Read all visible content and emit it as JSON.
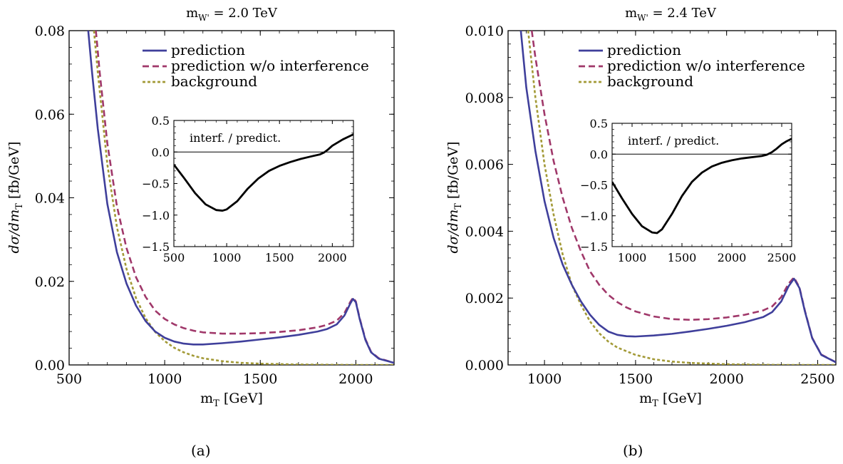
{
  "chart_data": [
    {
      "id": "a",
      "type": "line",
      "caption": "(a)",
      "title_main": "m",
      "title_sub": "W'",
      "title_rest": " = 2.0 TeV",
      "xlabel_main": "m",
      "xlabel_sub": "T",
      "xlabel_rest": " [GeV]",
      "ylabel": "dσ/dm_T [fb/GeV]",
      "xlim": [
        500,
        2200
      ],
      "ylim": [
        0,
        0.08
      ],
      "xticks": [
        500,
        1000,
        1500,
        2000
      ],
      "xtick_labels": [
        "500",
        "1000",
        "1500",
        "2000"
      ],
      "yticks": [
        0,
        0.02,
        0.04,
        0.06,
        0.08
      ],
      "ytick_labels": [
        "0.00",
        "0.02",
        "0.04",
        "0.06",
        "0.08"
      ],
      "legend_position": "top-right",
      "series": [
        {
          "name": "prediction",
          "color": "#3f3f9b",
          "dash": "solid",
          "points": [
            [
              600,
              0.08
            ],
            [
              620,
              0.07
            ],
            [
              650,
              0.0565
            ],
            [
              700,
              0.0385
            ],
            [
              750,
              0.027
            ],
            [
              800,
              0.0195
            ],
            [
              850,
              0.0142
            ],
            [
              900,
              0.0105
            ],
            [
              950,
              0.008
            ],
            [
              1000,
              0.0065
            ],
            [
              1050,
              0.0056
            ],
            [
              1100,
              0.0051
            ],
            [
              1150,
              0.0049
            ],
            [
              1200,
              0.0049
            ],
            [
              1300,
              0.0052
            ],
            [
              1400,
              0.0056
            ],
            [
              1500,
              0.0061
            ],
            [
              1600,
              0.0066
            ],
            [
              1700,
              0.0072
            ],
            [
              1800,
              0.008
            ],
            [
              1850,
              0.0086
            ],
            [
              1900,
              0.0097
            ],
            [
              1940,
              0.0118
            ],
            [
              1970,
              0.0146
            ],
            [
              1985,
              0.0158
            ],
            [
              2000,
              0.015
            ],
            [
              2020,
              0.011
            ],
            [
              2050,
              0.006
            ],
            [
              2080,
              0.003
            ],
            [
              2120,
              0.0015
            ],
            [
              2200,
              0.0005
            ]
          ]
        },
        {
          "name": "prediction w/o interference",
          "color": "#a0386a",
          "dash": "dashed",
          "points": [
            [
              640,
              0.08
            ],
            [
              660,
              0.07
            ],
            [
              700,
              0.053
            ],
            [
              750,
              0.038
            ],
            [
              800,
              0.028
            ],
            [
              850,
              0.021
            ],
            [
              900,
              0.0163
            ],
            [
              950,
              0.013
            ],
            [
              1000,
              0.011
            ],
            [
              1050,
              0.0097
            ],
            [
              1100,
              0.0088
            ],
            [
              1150,
              0.0082
            ],
            [
              1200,
              0.0078
            ],
            [
              1300,
              0.0075
            ],
            [
              1400,
              0.0075
            ],
            [
              1500,
              0.0076
            ],
            [
              1600,
              0.0079
            ],
            [
              1700,
              0.0083
            ],
            [
              1800,
              0.009
            ],
            [
              1850,
              0.0096
            ],
            [
              1900,
              0.0106
            ],
            [
              1940,
              0.0124
            ],
            [
              1970,
              0.015
            ],
            [
              1985,
              0.0161
            ],
            [
              2000,
              0.0152
            ],
            [
              2020,
              0.0112
            ],
            [
              2050,
              0.0062
            ],
            [
              2080,
              0.0031
            ],
            [
              2120,
              0.0016
            ],
            [
              2200,
              0.0005
            ]
          ]
        },
        {
          "name": "background",
          "color": "#a39a37",
          "dash": "dotted",
          "points": [
            [
              630,
              0.08
            ],
            [
              650,
              0.07
            ],
            [
              700,
              0.048
            ],
            [
              750,
              0.033
            ],
            [
              800,
              0.023
            ],
            [
              850,
              0.016
            ],
            [
              900,
              0.0112
            ],
            [
              950,
              0.0079
            ],
            [
              1000,
              0.0057
            ],
            [
              1050,
              0.0041
            ],
            [
              1100,
              0.003
            ],
            [
              1150,
              0.0022
            ],
            [
              1200,
              0.0016
            ],
            [
              1300,
              0.0009
            ],
            [
              1400,
              0.0005
            ],
            [
              1500,
              0.0003
            ],
            [
              1700,
              0.0001
            ],
            [
              2000,
              0.0
            ],
            [
              2200,
              0.0
            ]
          ]
        }
      ],
      "inset": {
        "label": "interf. / predict.",
        "xlim": [
          500,
          2200
        ],
        "ylim": [
          -1.5,
          0.5
        ],
        "xticks": [
          500,
          1000,
          1500,
          2000
        ],
        "xtick_labels": [
          "500",
          "1000",
          "1500",
          "2000"
        ],
        "yticks": [
          -1.5,
          -1.0,
          -0.5,
          0.0,
          0.5
        ],
        "ytick_labels": [
          "−1.5",
          "−1.0",
          "−0.5",
          "0.0",
          "0.5"
        ],
        "color": "#000000",
        "points": [
          [
            500,
            -0.2
          ],
          [
            600,
            -0.42
          ],
          [
            700,
            -0.65
          ],
          [
            800,
            -0.83
          ],
          [
            900,
            -0.92
          ],
          [
            960,
            -0.93
          ],
          [
            1000,
            -0.91
          ],
          [
            1100,
            -0.78
          ],
          [
            1200,
            -0.58
          ],
          [
            1300,
            -0.42
          ],
          [
            1400,
            -0.3
          ],
          [
            1500,
            -0.22
          ],
          [
            1600,
            -0.16
          ],
          [
            1700,
            -0.11
          ],
          [
            1800,
            -0.07
          ],
          [
            1880,
            -0.04
          ],
          [
            1920,
            -0.01
          ],
          [
            1960,
            0.04
          ],
          [
            2000,
            0.1
          ],
          [
            2100,
            0.2
          ],
          [
            2200,
            0.28
          ]
        ]
      }
    },
    {
      "id": "b",
      "type": "line",
      "caption": "(b)",
      "title_main": "m",
      "title_sub": "W'",
      "title_rest": " = 2.4 TeV",
      "xlabel_main": "m",
      "xlabel_sub": "T",
      "xlabel_rest": " [GeV]",
      "ylabel": "dσ/dm_T [fb/GeV]",
      "xlim": [
        800,
        2600
      ],
      "ylim": [
        0,
        0.01
      ],
      "xticks": [
        1000,
        1500,
        2000,
        2500
      ],
      "xtick_labels": [
        "1000",
        "1500",
        "2000",
        "2500"
      ],
      "yticks": [
        0,
        0.002,
        0.004,
        0.006,
        0.008,
        0.01
      ],
      "ytick_labels": [
        "0.000",
        "0.002",
        "0.004",
        "0.006",
        "0.008",
        "0.010"
      ],
      "legend_position": "top-right",
      "series": [
        {
          "name": "prediction",
          "color": "#3f3f9b",
          "dash": "solid",
          "points": [
            [
              870,
              0.01
            ],
            [
              900,
              0.0083
            ],
            [
              950,
              0.0064
            ],
            [
              1000,
              0.0049
            ],
            [
              1050,
              0.0038
            ],
            [
              1100,
              0.003
            ],
            [
              1150,
              0.0024
            ],
            [
              1200,
              0.0019
            ],
            [
              1250,
              0.0015
            ],
            [
              1300,
              0.0012
            ],
            [
              1350,
              0.001
            ],
            [
              1400,
              0.0009
            ],
            [
              1450,
              0.00086
            ],
            [
              1500,
              0.00085
            ],
            [
              1600,
              0.00088
            ],
            [
              1700,
              0.00093
            ],
            [
              1800,
              0.001
            ],
            [
              1900,
              0.00108
            ],
            [
              2000,
              0.00117
            ],
            [
              2100,
              0.00128
            ],
            [
              2200,
              0.00143
            ],
            [
              2250,
              0.00158
            ],
            [
              2300,
              0.0019
            ],
            [
              2340,
              0.00235
            ],
            [
              2370,
              0.00258
            ],
            [
              2400,
              0.0023
            ],
            [
              2430,
              0.0016
            ],
            [
              2470,
              0.0008
            ],
            [
              2520,
              0.0003
            ],
            [
              2600,
              8e-05
            ]
          ]
        },
        {
          "name": "prediction w/o interference",
          "color": "#a0386a",
          "dash": "dashed",
          "points": [
            [
              930,
              0.01
            ],
            [
              950,
              0.0092
            ],
            [
              1000,
              0.0075
            ],
            [
              1050,
              0.0061
            ],
            [
              1100,
              0.005
            ],
            [
              1150,
              0.0041
            ],
            [
              1200,
              0.0034
            ],
            [
              1250,
              0.0028
            ],
            [
              1300,
              0.0024
            ],
            [
              1350,
              0.0021
            ],
            [
              1400,
              0.00188
            ],
            [
              1450,
              0.00172
            ],
            [
              1500,
              0.0016
            ],
            [
              1600,
              0.00145
            ],
            [
              1700,
              0.00137
            ],
            [
              1800,
              0.00135
            ],
            [
              1900,
              0.00137
            ],
            [
              2000,
              0.00142
            ],
            [
              2100,
              0.0015
            ],
            [
              2200,
              0.00163
            ],
            [
              2250,
              0.00175
            ],
            [
              2300,
              0.00203
            ],
            [
              2340,
              0.00243
            ],
            [
              2370,
              0.00262
            ],
            [
              2400,
              0.00232
            ],
            [
              2430,
              0.00162
            ],
            [
              2470,
              0.00081
            ],
            [
              2520,
              0.00031
            ],
            [
              2600,
              8e-05
            ]
          ]
        },
        {
          "name": "background",
          "color": "#a39a37",
          "dash": "dotted",
          "points": [
            [
              910,
              0.01
            ],
            [
              950,
              0.008
            ],
            [
              1000,
              0.006
            ],
            [
              1050,
              0.0045
            ],
            [
              1100,
              0.0033
            ],
            [
              1150,
              0.0024
            ],
            [
              1200,
              0.0018
            ],
            [
              1250,
              0.0013
            ],
            [
              1300,
              0.00095
            ],
            [
              1350,
              0.0007
            ],
            [
              1400,
              0.00052
            ],
            [
              1500,
              0.0003
            ],
            [
              1600,
              0.00017
            ],
            [
              1700,
              0.0001
            ],
            [
              1800,
              6e-05
            ],
            [
              2000,
              2e-05
            ],
            [
              2300,
              0.0
            ],
            [
              2600,
              0.0
            ]
          ]
        }
      ],
      "inset": {
        "label": "interf. / predict.",
        "xlim": [
          800,
          2600
        ],
        "ylim": [
          -1.5,
          0.5
        ],
        "xticks": [
          1000,
          1500,
          2000,
          2500
        ],
        "xtick_labels": [
          "1000",
          "1500",
          "2000",
          "2500"
        ],
        "yticks": [
          -1.5,
          -1.0,
          -0.5,
          0.0,
          0.5
        ],
        "ytick_labels": [
          "−1.5",
          "−1.0",
          "−0.5",
          "0.0",
          "0.5"
        ],
        "color": "#000000",
        "points": [
          [
            800,
            -0.45
          ],
          [
            900,
            -0.72
          ],
          [
            1000,
            -0.97
          ],
          [
            1100,
            -1.17
          ],
          [
            1200,
            -1.27
          ],
          [
            1250,
            -1.28
          ],
          [
            1300,
            -1.22
          ],
          [
            1400,
            -0.97
          ],
          [
            1500,
            -0.68
          ],
          [
            1600,
            -0.45
          ],
          [
            1700,
            -0.3
          ],
          [
            1800,
            -0.2
          ],
          [
            1900,
            -0.14
          ],
          [
            2000,
            -0.1
          ],
          [
            2100,
            -0.07
          ],
          [
            2200,
            -0.05
          ],
          [
            2300,
            -0.03
          ],
          [
            2350,
            -0.01
          ],
          [
            2400,
            0.03
          ],
          [
            2450,
            0.09
          ],
          [
            2500,
            0.16
          ],
          [
            2550,
            0.21
          ],
          [
            2600,
            0.25
          ]
        ]
      }
    }
  ]
}
